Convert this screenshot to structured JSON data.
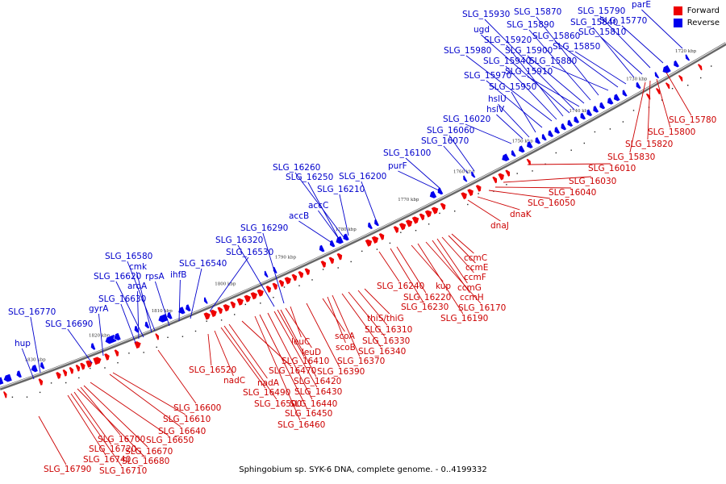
{
  "caption": "Sphingobium sp. SYK-6 DNA, complete genome. - 0..4199332",
  "legend": [
    {
      "label": "Forward",
      "color": "#ee0000"
    },
    {
      "label": "Reverse",
      "color": "#0000ee"
    }
  ],
  "colors": {
    "forward": "#ee0000",
    "reverse": "#0000ee",
    "forward_label": "#cc0000",
    "reverse_label": "#0000cc"
  },
  "scale_labels": [
    "1830 kbp",
    "1820 kbp",
    "1810 kbp",
    "1800 kbp",
    "1790 kbp",
    "1780 kbp",
    "1770 kbp",
    "1760 kbp",
    "1750 kbp",
    "1740 kbp",
    "1730 kbp",
    "1720 kbp"
  ],
  "genes_reverse": [
    "hup",
    "SLG_16770",
    "SLG_16690",
    "gyrA",
    "SLG_16630",
    "aroA",
    "SLG_16620",
    "cmk",
    "SLG_16580",
    "rpsA",
    "ihfB",
    "SLG_16540",
    "SLG_16530",
    "SLG_16320",
    "SLG_16290",
    "accB",
    "accC",
    "SLG_16210",
    "SLG_16250",
    "SLG_16260",
    "SLG_16200",
    "purF",
    "SLG_16100",
    "SLG_16070",
    "SLG_16060",
    "SLG_16020",
    "hslV",
    "hslU",
    "SLG_15950",
    "SLG_15970",
    "SLG_15980",
    "SLG_15940",
    "SLG_15920",
    "ugd",
    "SLG_15930",
    "SLG_15910",
    "SLG_15900",
    "SLG_15890",
    "SLG_15870",
    "SLG_15880",
    "SLG_15860",
    "SLG_15850",
    "SLG_15840",
    "SLG_15810",
    "SLG_15790",
    "SLG_15770",
    "parE"
  ],
  "genes_forward": [
    "SLG_16790",
    "SLG_16710",
    "SLG_16740",
    "SLG_16680",
    "SLG_16720",
    "SLG_16670",
    "SLG_16700",
    "SLG_16650",
    "SLG_16640",
    "SLG_16610",
    "SLG_16600",
    "SLG_16520",
    "nadC",
    "SLG_16500",
    "nadA",
    "SLG_16490",
    "SLG_16470",
    "SLG_16460",
    "SLG_16450",
    "SLG_16440",
    "SLG_16430",
    "SLG_16420",
    "leuD",
    "SLG_16410",
    "leuC",
    "SLG_16390",
    "scoA",
    "scoB",
    "SLG_16370",
    "SLG_16340",
    "SLG_16330",
    "SLG_16310",
    "thiS/thiG",
    "SLG_16240",
    "SLG_16230",
    "SLG_16220",
    "kup",
    "SLG_16190",
    "SLG_16170",
    "ccmH",
    "ccmG",
    "ccmF",
    "ccmE",
    "ccmC",
    "dnaJ",
    "dnaK",
    "SLG_16050",
    "SLG_16040",
    "SLG_16030",
    "SLG_16010",
    "SLG_15830",
    "SLG_15820",
    "SLG_15800",
    "SLG_15780"
  ]
}
